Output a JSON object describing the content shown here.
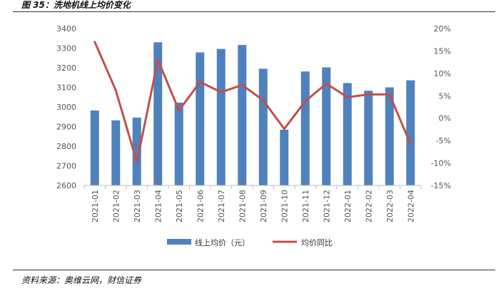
{
  "header": {
    "title": "图 35：洗地机线上均价变化"
  },
  "footer": {
    "source": "资料来源：奥维云网，财信证券"
  },
  "chart_data": {
    "type": "bar+line",
    "categories": [
      "2021-01",
      "2021-02",
      "2021-03",
      "2021-04",
      "2021-05",
      "2021-06",
      "2021-07",
      "2021-08",
      "2021-09",
      "2021-10",
      "2021-11",
      "2021-12",
      "2022-01",
      "2022-02",
      "2022-03",
      "2022-04"
    ],
    "series": [
      {
        "name": "线上均价（元）",
        "type": "bar",
        "axis": "left",
        "color": "#4F81BD",
        "values": [
          2982,
          2932,
          2946,
          3330,
          3022,
          3278,
          3296,
          3316,
          3195,
          2884,
          3181,
          3202,
          3122,
          3083,
          3100,
          3136
        ]
      },
      {
        "name": "均价同比",
        "type": "line",
        "axis": "right",
        "color": "#C0504D",
        "values": [
          17.0,
          6.2,
          -9.8,
          13.0,
          1.7,
          8.1,
          5.8,
          7.4,
          4.0,
          -2.4,
          3.8,
          7.7,
          4.7,
          5.3,
          5.3,
          -5.8
        ]
      }
    ],
    "y_left": {
      "min": 2600,
      "max": 3400,
      "step": 100,
      "ticks": [
        "2600",
        "2700",
        "2800",
        "2900",
        "3000",
        "3100",
        "3200",
        "3300",
        "3400"
      ]
    },
    "y_right": {
      "min": -15,
      "max": 20,
      "step": 5,
      "ticks": [
        "-15%",
        "-10%",
        "-5%",
        "0%",
        "5%",
        "10%",
        "15%",
        "20%"
      ]
    },
    "grid": false,
    "legend": "bottom"
  }
}
